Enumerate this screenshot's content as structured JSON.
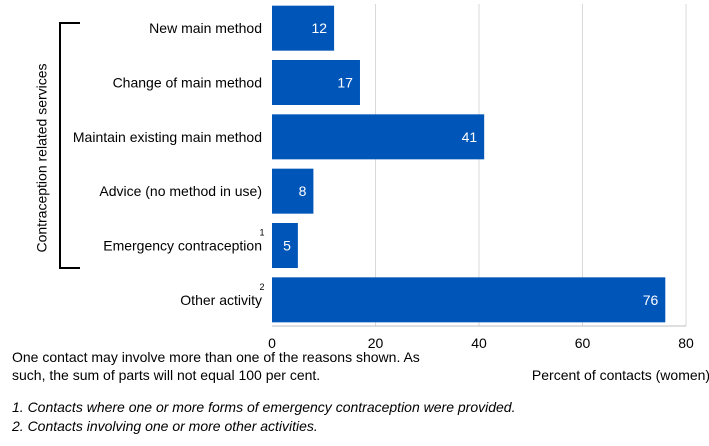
{
  "chart_data": {
    "type": "bar",
    "orientation": "horizontal",
    "categories": [
      "New main method",
      "Change of main method",
      "Maintain existing main method",
      "Advice (no method in use)",
      "Emergency contraception",
      "Other activity"
    ],
    "category_superscripts": [
      "",
      "",
      "",
      "",
      "1",
      "2"
    ],
    "values": [
      12,
      17,
      41,
      8,
      5,
      76
    ],
    "data_labels": [
      "12",
      "17",
      "41",
      "8",
      "5",
      "76"
    ],
    "xlabel": "Percent of contacts (women)",
    "xlim": [
      0,
      80
    ],
    "xticks": [
      0,
      20,
      40,
      60,
      80
    ],
    "xtick_labels": [
      "0",
      "20",
      "40",
      "60",
      "80"
    ],
    "group_label": "Contraception related services",
    "bar_color": "#0055B8",
    "grid": true,
    "legend": "none"
  },
  "note": "One contact may involve more than one of the reasons shown. As such, the sum of parts will not equal 100 per cent.",
  "footnotes": [
    "1. Contacts where one or more forms of emergency contraception were provided.",
    "2. Contacts involving one or more other activities."
  ]
}
